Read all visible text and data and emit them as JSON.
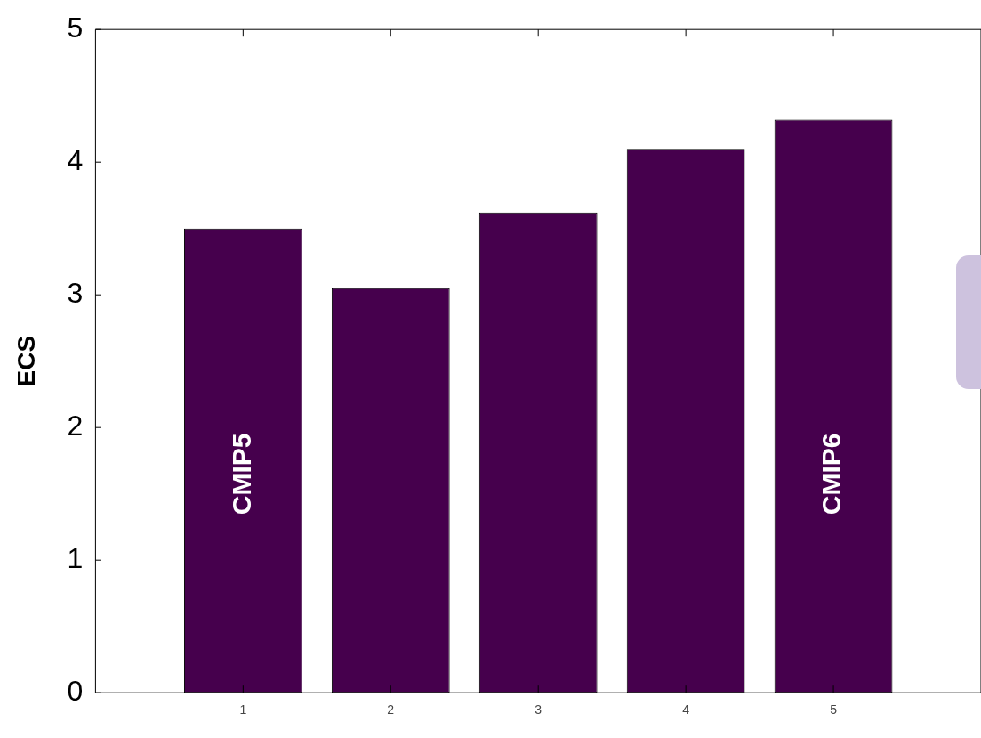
{
  "chart_data": {
    "type": "bar",
    "x": [
      1,
      2,
      3,
      4,
      5
    ],
    "values": [
      3.5,
      3.05,
      3.62,
      4.1,
      4.32
    ],
    "color": "#46004d",
    "ylabel": "ECS",
    "xlim": [
      0,
      6
    ],
    "xticks": [
      1,
      2,
      3,
      4,
      5
    ],
    "ylim": [
      0,
      5
    ],
    "yticks": [
      0,
      1,
      2,
      3,
      4,
      5
    ],
    "grid": false,
    "legend": false,
    "annotations": [
      "CMIP5",
      "CMIP6"
    ]
  }
}
